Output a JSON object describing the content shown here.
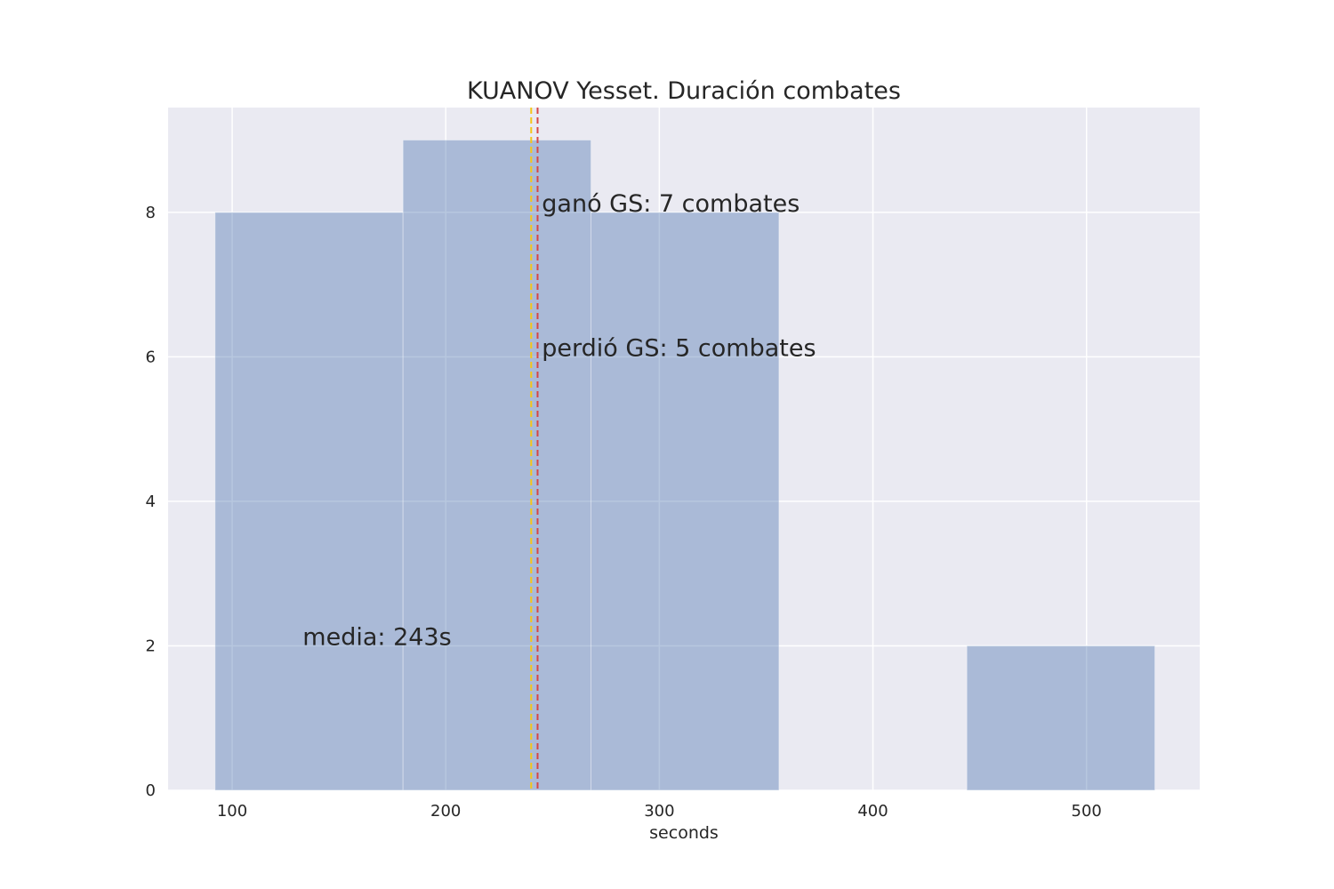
{
  "chart_data": {
    "type": "bar",
    "title": "KUANOV Yesset. Duración combates",
    "xlabel": "seconds",
    "ylabel": "",
    "xlim": [
      70,
      553
    ],
    "ylim": [
      0,
      9.45
    ],
    "xticks": [
      100,
      200,
      300,
      400,
      500
    ],
    "yticks": [
      0,
      2,
      4,
      6,
      8
    ],
    "grid": true,
    "bins": [
      {
        "x0": 92,
        "x1": 180,
        "count": 8
      },
      {
        "x0": 180,
        "x1": 268,
        "count": 9
      },
      {
        "x0": 268,
        "x1": 356,
        "count": 8
      },
      {
        "x0": 356,
        "x1": 444,
        "count": 0
      },
      {
        "x0": 444,
        "x1": 532,
        "count": 2
      }
    ],
    "vlines": [
      {
        "x": 240,
        "color": "#f5c518",
        "style": "dashed"
      },
      {
        "x": 243,
        "color": "#d64545",
        "style": "dashed"
      }
    ],
    "annotations": [
      {
        "text": "ganó GS: 7 combates",
        "x": 245,
        "y": 8.0,
        "color": "#262626"
      },
      {
        "text": "perdió GS: 5 combates",
        "x": 245,
        "y": 6.0,
        "color": "#262626"
      },
      {
        "text": "media: 243s",
        "x": 133,
        "y": 2.0,
        "color": "#c44e52"
      }
    ],
    "colors": {
      "bar": "#4c72b0",
      "background": "#eaeaf2",
      "grid": "#ffffff"
    }
  }
}
